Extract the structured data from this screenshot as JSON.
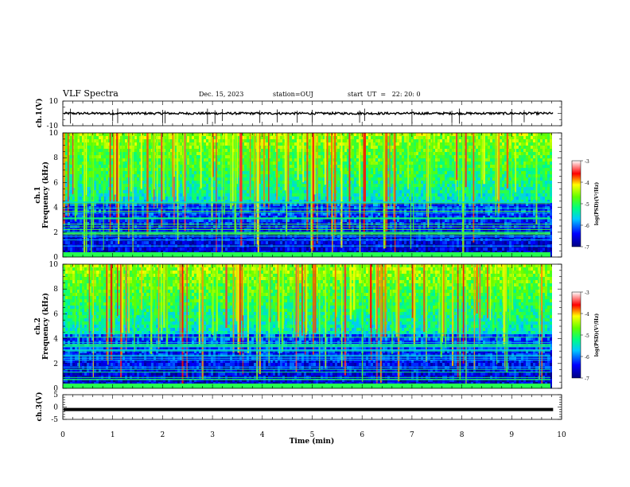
{
  "header": {
    "title": "VLF Spectra",
    "date": "Dec. 15, 2023",
    "station": "station=OUJ",
    "start": "start  UT  =   22: 20: 0"
  },
  "chart_data": [
    {
      "type": "line",
      "panel": "ch.1 waveform",
      "ylabel": "ch.1(V)",
      "ylim": [
        -10,
        10
      ],
      "yticks": [
        "10",
        "-10"
      ],
      "xlim": [
        0,
        10
      ],
      "series": [
        {
          "values_summary": "noisy trace around 0 V, spikes to about -8 V"
        }
      ]
    },
    {
      "type": "heatmap",
      "panel": "ch.1 spectrogram",
      "ylabel": "ch.1\nFrequency (kHz)",
      "ylim": [
        0,
        10
      ],
      "yticks": [
        "0",
        "2",
        "4",
        "6",
        "8",
        "10"
      ],
      "xlim": [
        0,
        9.83
      ],
      "colorbar": {
        "label": "log(PSD)(V²/Hz)",
        "range": [
          -7,
          -3
        ],
        "ticks": [
          "-3",
          "-4",
          "-5",
          "-6",
          "-7"
        ]
      },
      "features": "sferic vertical stripes at many times; broadband noise above ~4 kHz; horizontal tonal lines below 4 kHz"
    },
    {
      "type": "heatmap",
      "panel": "ch.2 spectrogram",
      "ylabel": "ch.2\nFrequency (kHz)",
      "ylim": [
        0,
        10
      ],
      "yticks": [
        "0",
        "2",
        "4",
        "6",
        "8",
        "10"
      ],
      "xlim": [
        0,
        9.83
      ],
      "colorbar": {
        "label": "log(PSD)(V²/Hz)",
        "range": [
          -7,
          -3
        ],
        "ticks": [
          "-3",
          "-4",
          "-5",
          "-6",
          "-7"
        ]
      }
    },
    {
      "type": "line",
      "panel": "ch.3 waveform",
      "ylabel": "ch.3(V)",
      "ylim": [
        -5,
        5
      ],
      "yticks": [
        "5",
        "0",
        "-5"
      ],
      "xlim": [
        0,
        10
      ],
      "series": [
        {
          "values_summary": "flat at about -1 V"
        }
      ]
    }
  ],
  "xaxis": {
    "label": "Time (min)",
    "ticks": [
      "0",
      "1",
      "2",
      "3",
      "4",
      "5",
      "6",
      "7",
      "8",
      "9",
      "10"
    ]
  }
}
